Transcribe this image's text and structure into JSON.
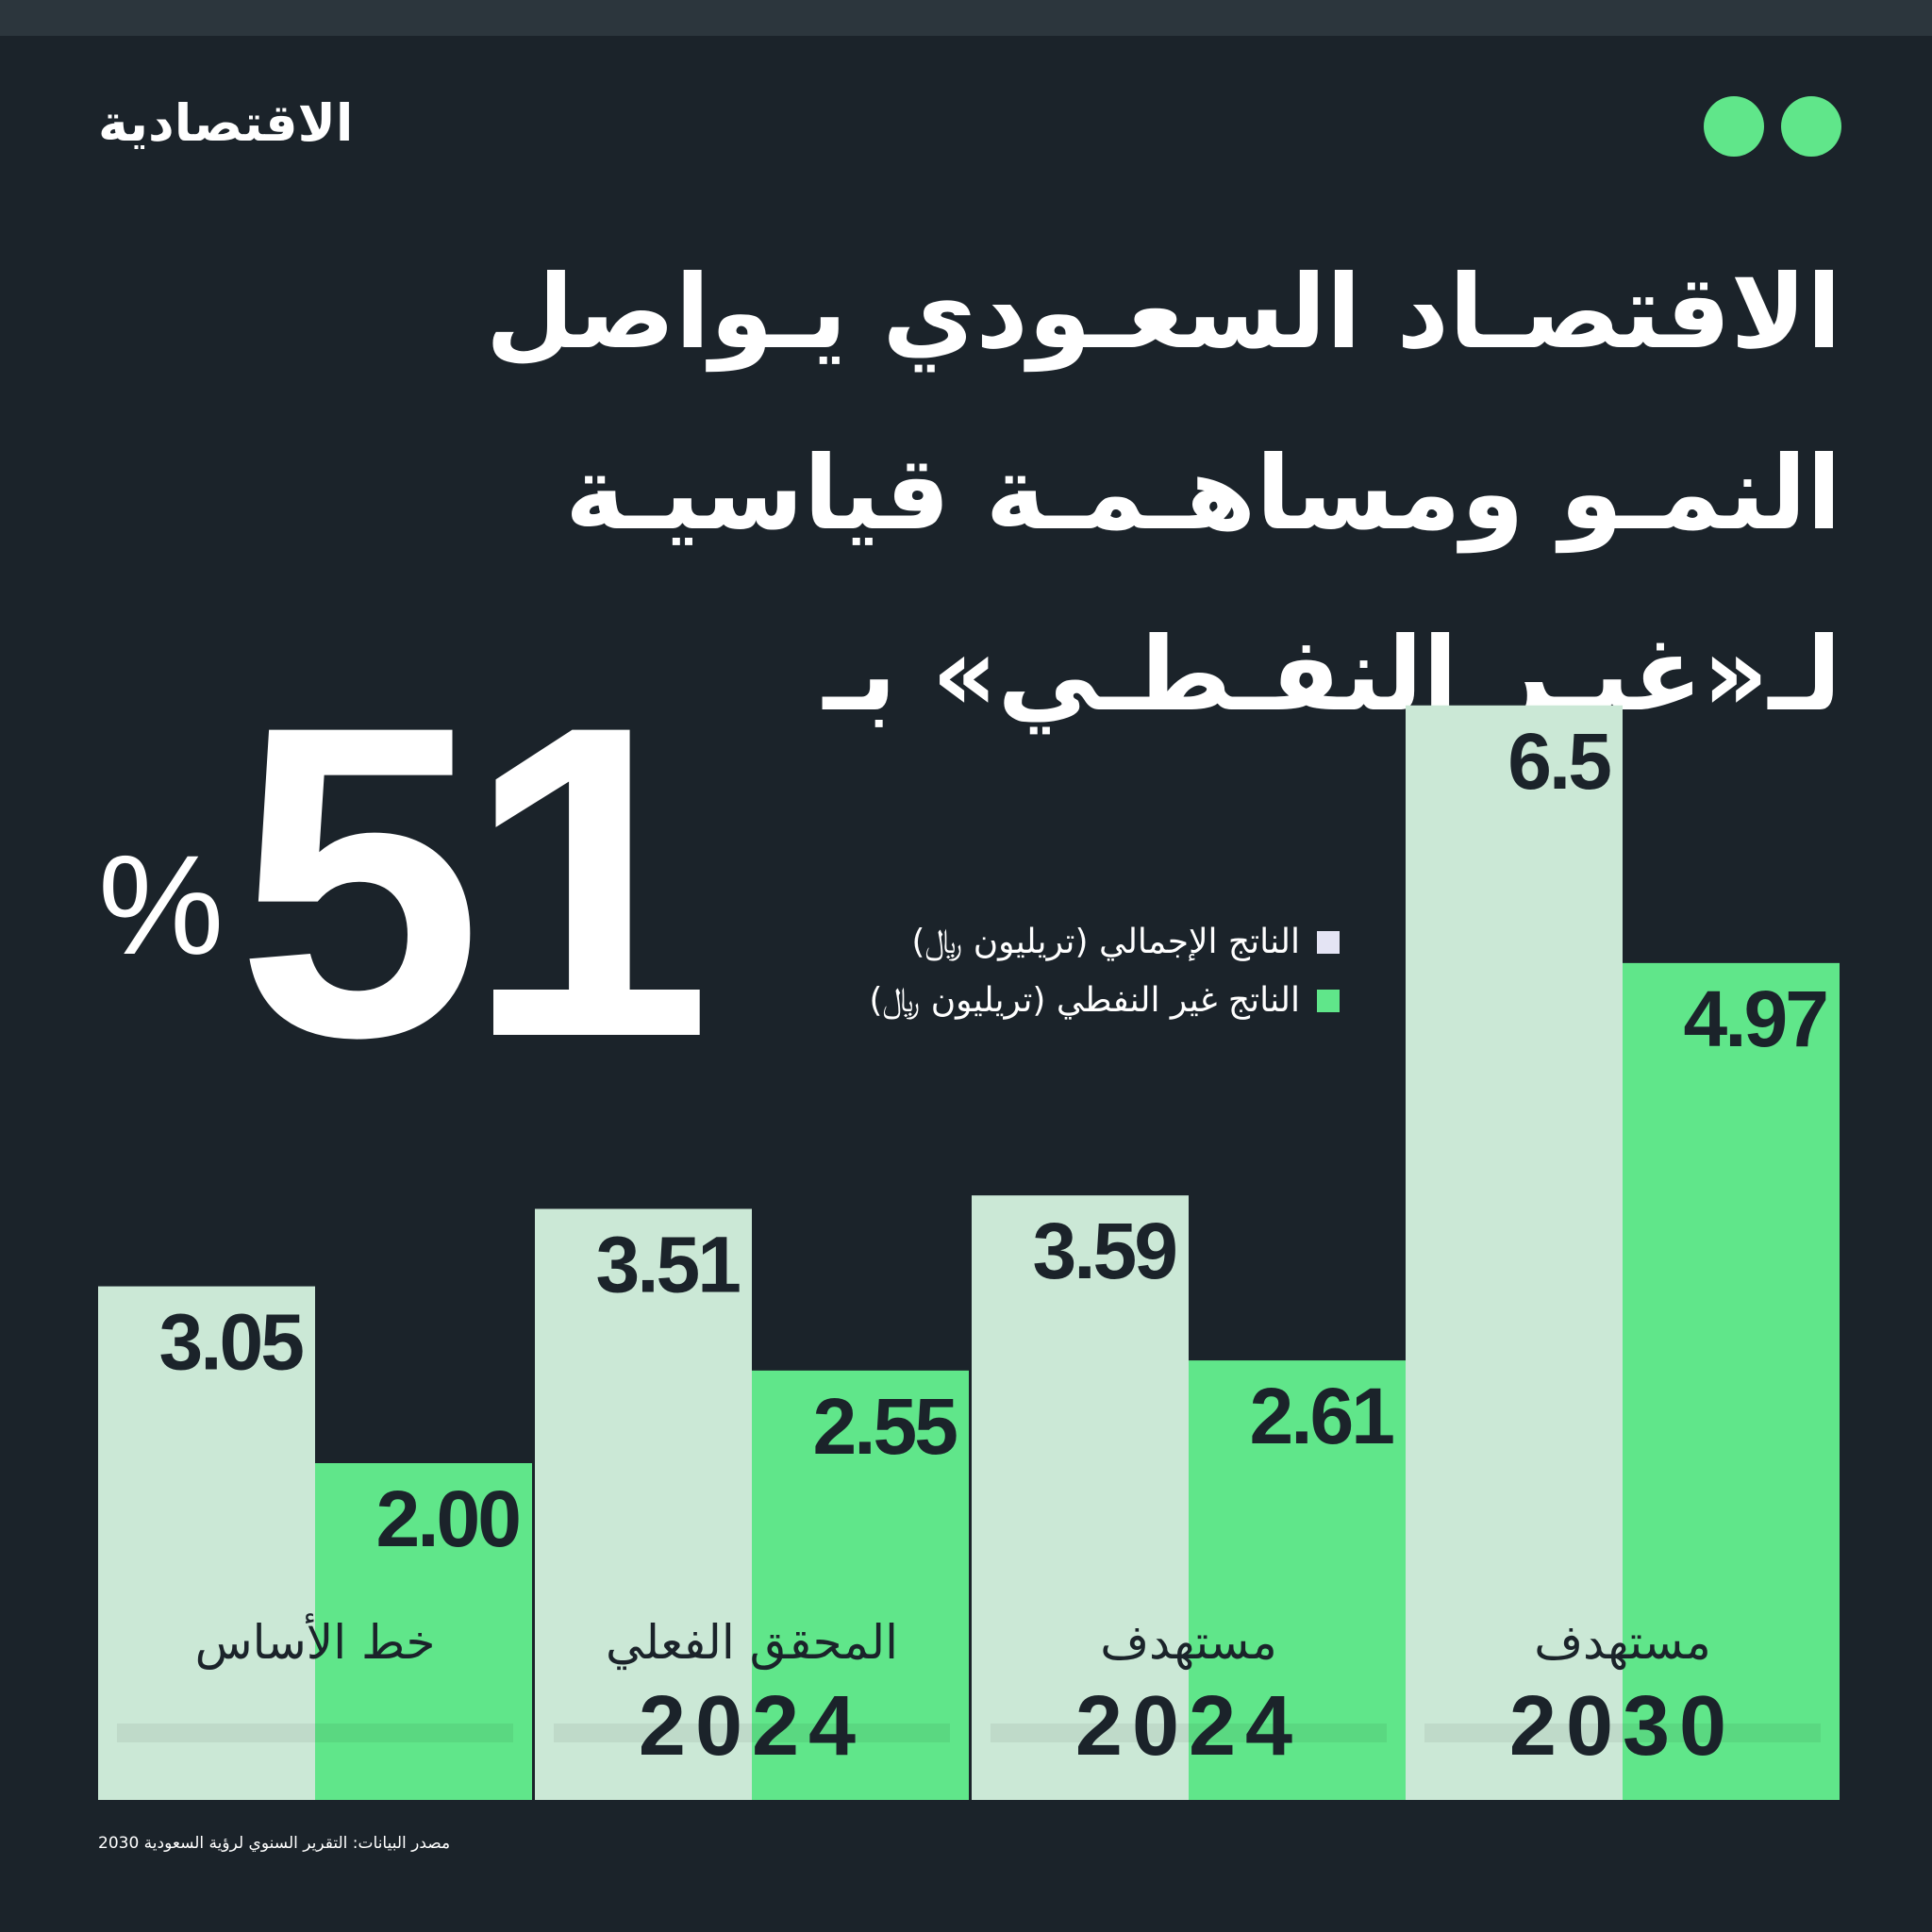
{
  "brand": {
    "logo_text": "الاقتصادية"
  },
  "headline": {
    "lines": [
      "الاقتصـاد السعـودي يـواصل",
      "النمـو ومساهـمـة قياسيـة",
      "لـ«غيـر النفـطـي» بـ"
    ],
    "big_number": "51",
    "percent_sign": "%"
  },
  "colors": {
    "background": "#1b232a",
    "total_gdp": "#cbe8d6",
    "non_oil_gdp": "#60e68a",
    "accent": "#60e68a",
    "text_dark": "#1b232a",
    "text_light": "#ffffff"
  },
  "legend": [
    {
      "label": "الناتج الإجمالي (تريليون ﷼)",
      "color": "#e4e4f4"
    },
    {
      "label": "الناتج غير النفطي (تريليون ﷼)",
      "color": "#60e68a"
    }
  ],
  "chart_data": {
    "type": "bar",
    "categories": [
      {
        "name": "خط الأساس",
        "year": ""
      },
      {
        "name": "المحقق الفعلي",
        "year": "2024"
      },
      {
        "name": "مستهدف",
        "year": "2024"
      },
      {
        "name": "مستهدف",
        "year": "2030"
      }
    ],
    "series": [
      {
        "name": "الناتج الإجمالي (تريليون ﷼)",
        "values": [
          3.05,
          3.51,
          3.59,
          6.5
        ],
        "labels": [
          "3.05",
          "3.51",
          "3.59",
          "6.5"
        ],
        "color": "#cbe8d6"
      },
      {
        "name": "الناتج غير النفطي (تريليون ﷼)",
        "values": [
          2.0,
          2.55,
          2.61,
          4.97
        ],
        "labels": [
          "2.00",
          "2.55",
          "2.61",
          "4.97"
        ],
        "color": "#60e68a"
      }
    ],
    "ylim": [
      0,
      7
    ],
    "grid": false,
    "legend": "top-right"
  },
  "source": "مصدر البيانات: التقرير السنوي لرؤية السعودية 2030"
}
